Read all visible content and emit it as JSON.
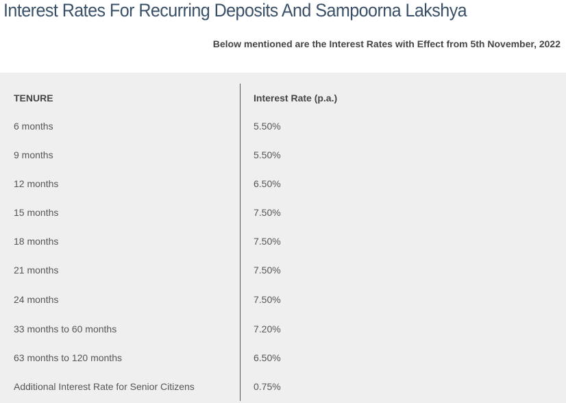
{
  "title": "Interest Rates For Recurring Deposits And Sampoorna Lakshya",
  "subtitle": "Below mentioned are the Interest Rates with Effect from 5th November, 2022",
  "table": {
    "headers": [
      "TENURE",
      "Interest Rate (p.a.)"
    ],
    "rows": [
      [
        "6 months",
        "5.50%"
      ],
      [
        "9 months",
        "5.50%"
      ],
      [
        "12 months",
        "6.50%"
      ],
      [
        "15 months",
        "7.50%"
      ],
      [
        "18 months",
        "7.50%"
      ],
      [
        "21 months",
        "7.50%"
      ],
      [
        "24 months",
        "7.50%"
      ],
      [
        "33 months to 60 months",
        "7.20%"
      ],
      [
        "63 months to 120 months",
        "6.50%"
      ],
      [
        "Additional Interest Rate for Senior Citizens",
        "0.75%"
      ]
    ]
  }
}
